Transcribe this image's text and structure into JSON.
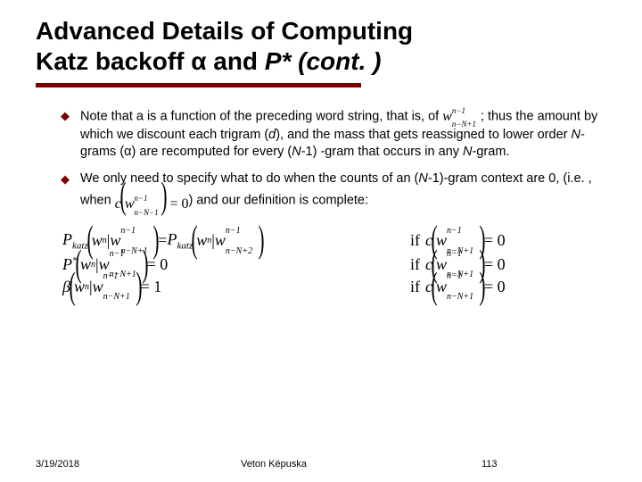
{
  "title_line1": "Advanced Details of Computing",
  "title_line2a": "Katz backoff ",
  "title_alpha": "α",
  "title_line2b": " and ",
  "title_pstar": "P* (cont. )",
  "bullet1": {
    "t1": "Note that a is a function of the preceding word string, that is, of ",
    "math": "w",
    "math_sup": "n−1",
    "math_sub": "n−N+1",
    "t2": "; thus the amount by which we discount each trigram (",
    "d": "d",
    "t3": "), and the mass that gets reassigned to lower order ",
    "ng": "N",
    "t4": "-grams (α) are recomputed for every (",
    "n1": "N",
    "t5": "-1) -gram that occurs in any ",
    "n2": "N",
    "t6": "-gram."
  },
  "bullet2": {
    "t1": "We only need to specify what to do when the counts of an (",
    "n": "N",
    "t2": "-1)-gram context are 0, (i.e. , when ",
    "c": "c",
    "lp": "(",
    "w": "w",
    "sup": "n−1",
    "sub": "n−N−1",
    "rp": ")",
    "eq": " = 0",
    "t3": ") and our definition is complete:"
  },
  "eq1": {
    "lhs_func": "P",
    "lhs_sub": "katz",
    "lhs_arg_w": "w",
    "lhs_arg_sub": "n",
    "lhs_bar": " | ",
    "lhs_cw": "w",
    "lhs_csup": "n−1",
    "lhs_csub": "n−N+1",
    "eqs": " = ",
    "rhs_func": "P",
    "rhs_sub": "katz",
    "rhs_arg_w": "w",
    "rhs_arg_sub2": "n",
    "rhs_bar": " | ",
    "rhs_cw": "w",
    "rhs_csup": "n−1",
    "rhs_csub": "n−N+2",
    "if": "if ",
    "cf": "c",
    "cw": "w",
    "csup": "n−1",
    "csub": "n−N+1",
    "cz": " = 0"
  },
  "eq2": {
    "lhs_func": "P",
    "lhs_star": "*",
    "lhs_arg_w": "w",
    "lhs_arg_sub": "n",
    "lhs_bar": " | ",
    "lhs_cw": "w",
    "lhs_csup": "n−1",
    "lhs_csub": "n−N+1",
    "eqs": " = 0",
    "if": "if ",
    "cf": "c",
    "cw": "w",
    "csup": "n−1",
    "csub": "n−N+1",
    "cz": " = 0"
  },
  "eq3": {
    "lhs_func": "β",
    "lhs_arg_w": "w",
    "lhs_arg_sub": "n",
    "lhs_bar": " | ",
    "lhs_cw": "w",
    "lhs_csup": "n−1",
    "lhs_csub": "n−N+1",
    "eqs": " = 1",
    "if": "if ",
    "cf": "c",
    "cw": "w",
    "csup": "n−1",
    "csub": "n−N+1",
    "cz": " = 0"
  },
  "footer": {
    "date": "3/19/2018",
    "author": "Veton Këpuska",
    "page": "113"
  },
  "colors": {
    "accent": "#800000",
    "text": "#000000",
    "bg": "#ffffff"
  }
}
